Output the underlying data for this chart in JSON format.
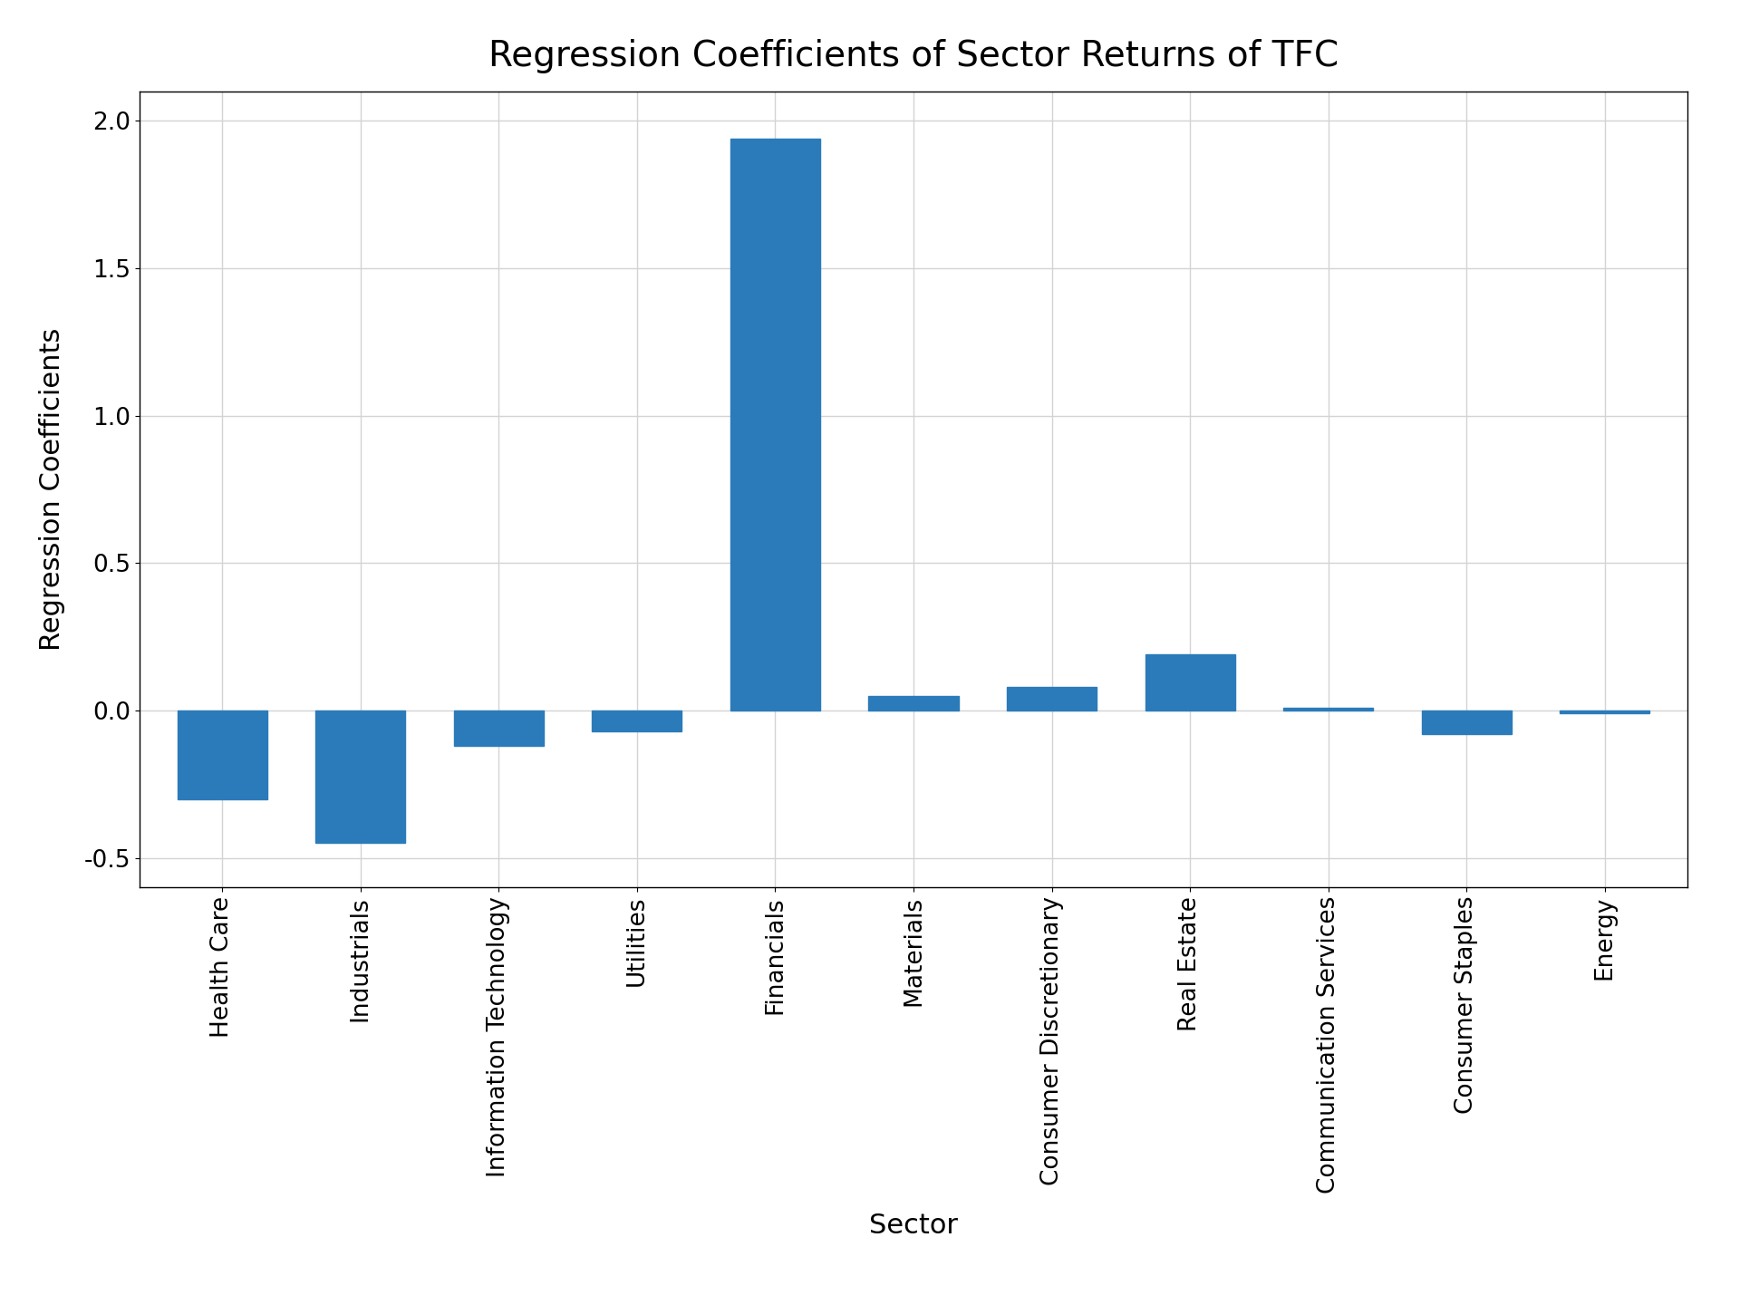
{
  "title": "Regression Coefficients of Sector Returns of TFC",
  "xlabel": "Sector",
  "ylabel": "Regression Coefficients",
  "categories": [
    "Health Care",
    "Industrials",
    "Information Technology",
    "Utilities",
    "Financials",
    "Materials",
    "Consumer Discretionary",
    "Real Estate",
    "Communication Services",
    "Consumer Staples",
    "Energy"
  ],
  "values": [
    -0.3,
    -0.45,
    -0.12,
    -0.07,
    1.94,
    0.05,
    0.08,
    0.19,
    0.01,
    -0.08,
    -0.01
  ],
  "bar_color": "#2b7bba",
  "ylim": [
    -0.6,
    2.1
  ],
  "yticks": [
    -0.5,
    0.0,
    0.5,
    1.0,
    1.5,
    2.0
  ],
  "title_fontsize": 28,
  "label_fontsize": 22,
  "tick_fontsize": 19,
  "background_color": "#ffffff",
  "figsize": [
    19.2,
    14.4
  ],
  "dpi": 100
}
